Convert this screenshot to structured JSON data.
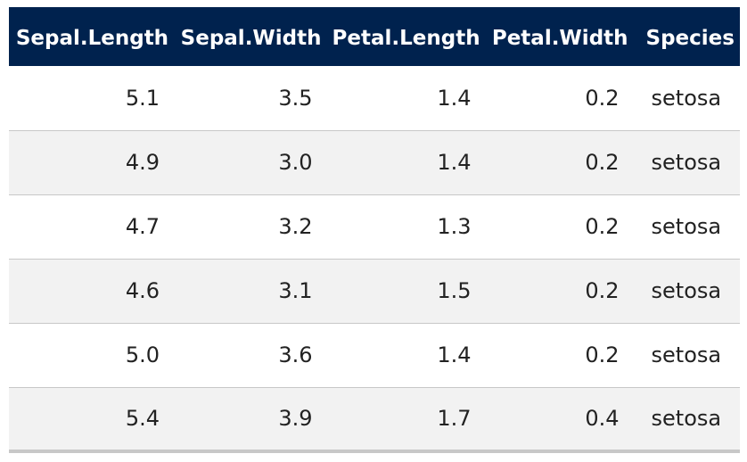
{
  "table": {
    "header_bg": "#00224e",
    "stripe_bg": "#f2f2f2",
    "columns": [
      "Sepal.Length",
      "Sepal.Width",
      "Petal.Length",
      "Petal.Width",
      "Species"
    ],
    "rows": [
      [
        "5.1",
        "3.5",
        "1.4",
        "0.2",
        "setosa"
      ],
      [
        "4.9",
        "3.0",
        "1.4",
        "0.2",
        "setosa"
      ],
      [
        "4.7",
        "3.2",
        "1.3",
        "0.2",
        "setosa"
      ],
      [
        "4.6",
        "3.1",
        "1.5",
        "0.2",
        "setosa"
      ],
      [
        "5.0",
        "3.6",
        "1.4",
        "0.2",
        "setosa"
      ],
      [
        "5.4",
        "3.9",
        "1.7",
        "0.4",
        "setosa"
      ]
    ]
  }
}
